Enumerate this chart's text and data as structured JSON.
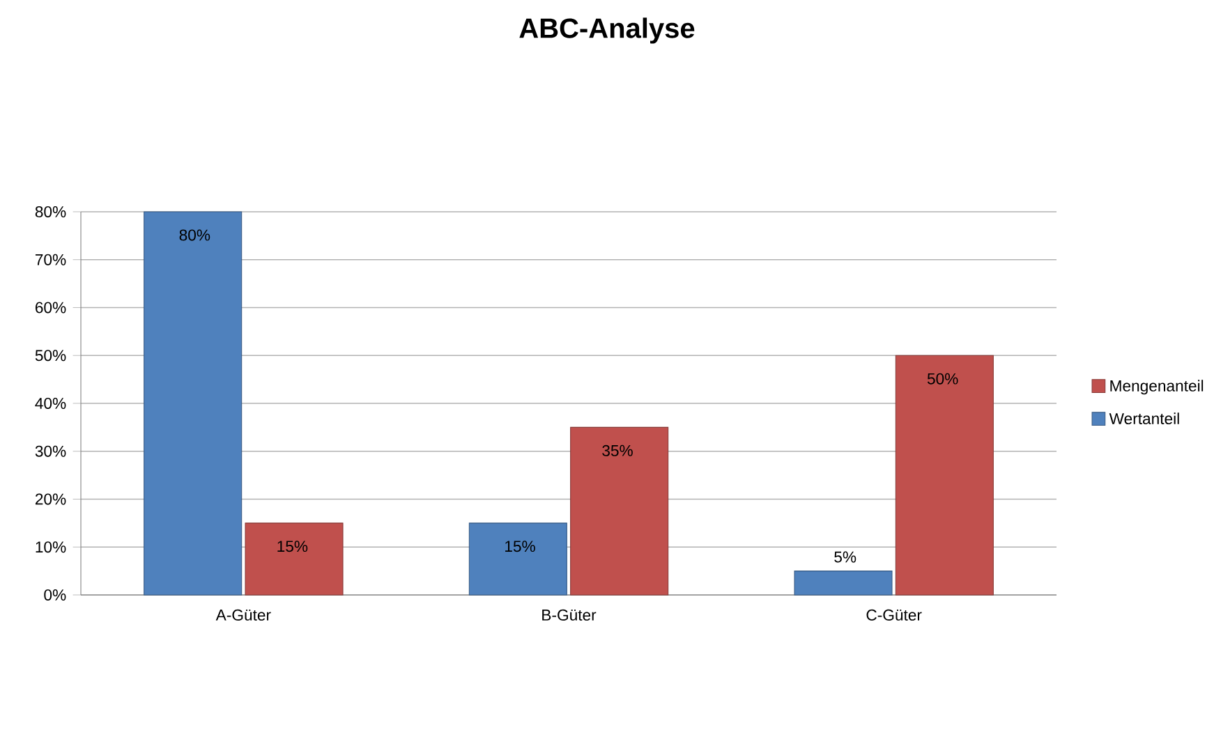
{
  "chart_data": {
    "type": "bar",
    "title": "ABC-Analyse",
    "categories": [
      "A-Güter",
      "B-Güter",
      "C-Güter"
    ],
    "series": [
      {
        "name": "Wertanteil",
        "color": "#4f81bd",
        "values": [
          80,
          15,
          5
        ],
        "value_labels": [
          "80%",
          "15%",
          "5%"
        ]
      },
      {
        "name": "Mengenanteil",
        "color": "#c0504d",
        "values": [
          15,
          35,
          50
        ],
        "value_labels": [
          "15%",
          "35%",
          "50%"
        ]
      }
    ],
    "ylim": [
      0,
      80
    ],
    "yticks": [
      {
        "value": 0,
        "label": "0%"
      },
      {
        "value": 10,
        "label": "10%"
      },
      {
        "value": 20,
        "label": "20%"
      },
      {
        "value": 30,
        "label": "30%"
      },
      {
        "value": 40,
        "label": "40%"
      },
      {
        "value": 50,
        "label": "50%"
      },
      {
        "value": 60,
        "label": "60%"
      },
      {
        "value": 70,
        "label": "70%"
      },
      {
        "value": 80,
        "label": "80%"
      }
    ],
    "grid": "y",
    "legend": "right"
  }
}
